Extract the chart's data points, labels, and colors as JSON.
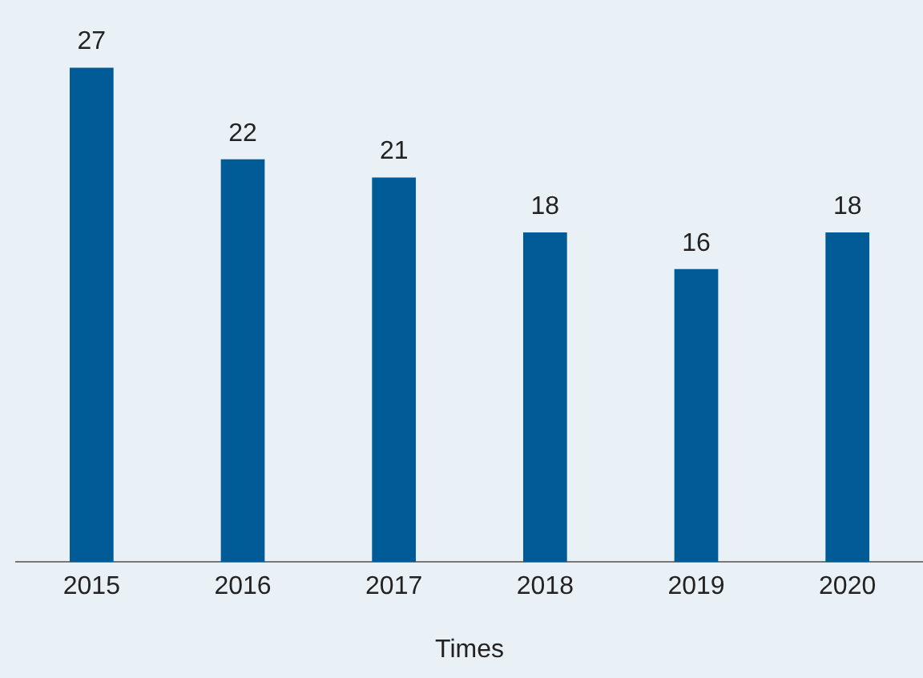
{
  "chart_data": {
    "type": "bar",
    "xlabel": "Times",
    "categories": [
      "2015",
      "2016",
      "2017",
      "2018",
      "2019",
      "2020"
    ],
    "values": [
      27,
      22,
      21,
      18,
      16,
      18
    ],
    "color": "#005b96",
    "data_labels": true,
    "grid": false,
    "legend": false
  }
}
